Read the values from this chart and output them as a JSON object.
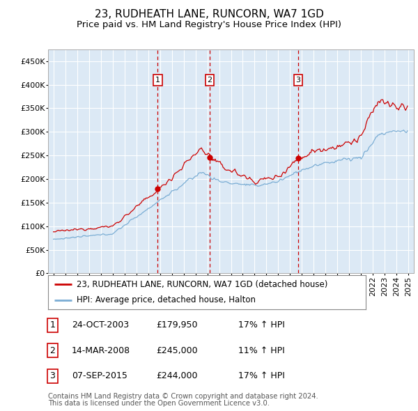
{
  "title": "23, RUDHEATH LANE, RUNCORN, WA7 1GD",
  "subtitle": "Price paid vs. HM Land Registry's House Price Index (HPI)",
  "legend_line1": "23, RUDHEATH LANE, RUNCORN, WA7 1GD (detached house)",
  "legend_line2": "HPI: Average price, detached house, Halton",
  "footnote1": "Contains HM Land Registry data © Crown copyright and database right 2024.",
  "footnote2": "This data is licensed under the Open Government Licence v3.0.",
  "transactions": [
    {
      "num": 1,
      "date": "24-OCT-2003",
      "price": 179950,
      "pct": "17%",
      "dir": "↑"
    },
    {
      "num": 2,
      "date": "14-MAR-2008",
      "price": 245000,
      "pct": "11%",
      "dir": "↑"
    },
    {
      "num": 3,
      "date": "07-SEP-2015",
      "price": 244000,
      "pct": "17%",
      "dir": "↑"
    }
  ],
  "transaction_years": [
    2003.81,
    2008.2,
    2015.69
  ],
  "transaction_prices": [
    179950,
    245000,
    244000
  ],
  "ylim": [
    0,
    475000
  ],
  "yticks": [
    0,
    50000,
    100000,
    150000,
    200000,
    250000,
    300000,
    350000,
    400000,
    450000
  ],
  "background_color": "#ffffff",
  "plot_bg_color": "#dce9f5",
  "grid_color": "#ffffff",
  "red_line_color": "#cc0000",
  "blue_line_color": "#7aadd4",
  "dashed_line_color": "#cc0000",
  "marker_color": "#cc0000",
  "title_fontsize": 11,
  "subtitle_fontsize": 9.5,
  "tick_fontsize": 8,
  "legend_fontsize": 8.5,
  "table_fontsize": 9
}
